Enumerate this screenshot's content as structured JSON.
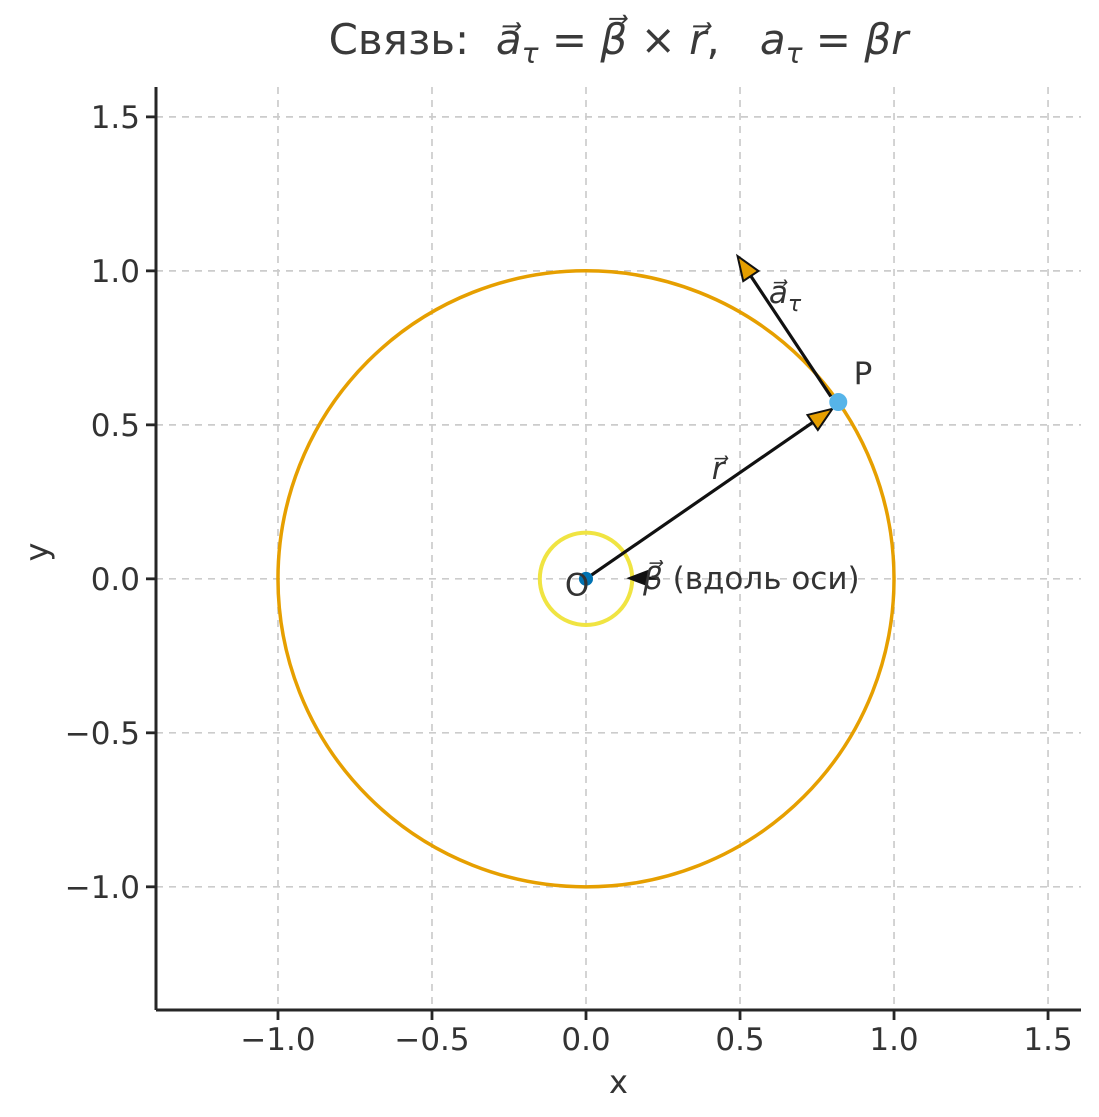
{
  "title": {
    "plain": "Связь:  a⃗τ = β⃗ × r⃗,   aτ = βr",
    "runs": [
      {
        "t": "Связь:  "
      },
      {
        "t": "a⃗",
        "i": true
      },
      {
        "t": "τ",
        "i": true,
        "sub": true
      },
      {
        "t": " = "
      },
      {
        "t": "β⃗",
        "i": true
      },
      {
        "t": " × "
      },
      {
        "t": "r⃗",
        "i": true
      },
      {
        "t": ",   "
      },
      {
        "t": "a",
        "i": true
      },
      {
        "t": "τ",
        "i": true,
        "sub": true
      },
      {
        "t": " = "
      },
      {
        "t": "βr",
        "i": true
      }
    ]
  },
  "style": {
    "text_color": "#333333",
    "spine_color": "#262626",
    "grid_color": "#cccccc",
    "arrow_color": "#111111",
    "orange": "#E69F00",
    "yellow": "#F0E442",
    "blue": "#0072B2",
    "skyblue": "#56B4E9"
  },
  "chart_data": {
    "type": "diagram",
    "title": "Связь:  a⃗τ = β⃗ × r⃗,   aτ = βr",
    "xlabel": "x",
    "ylabel": "y",
    "xlim": [
      -1.396,
      1.607
    ],
    "ylim": [
      -1.4,
      1.597
    ],
    "xticks": [
      -1.0,
      -0.5,
      0.0,
      0.5,
      1.0,
      1.5
    ],
    "xtick_labels": [
      "−1.0",
      "−0.5",
      "0.0",
      "0.5",
      "1.0",
      "1.5"
    ],
    "yticks": [
      -1.0,
      -0.5,
      0.0,
      0.5,
      1.0,
      1.5
    ],
    "ytick_labels": [
      "−1.0",
      "−0.5",
      "0.0",
      "0.5",
      "1.0",
      "1.5"
    ],
    "grid": {
      "on": true,
      "style": "dashed",
      "color": "#cccccc"
    },
    "legend": null,
    "circles": [
      {
        "name": "trajectory-circle",
        "cx": 0,
        "cy": 0,
        "r": 1.0,
        "stroke": "#E69F00",
        "width": 3.5
      },
      {
        "name": "rotation-axis-circle",
        "cx": 0,
        "cy": 0,
        "r": 0.15,
        "stroke": "#F0E442",
        "width": 4
      }
    ],
    "points": [
      {
        "name": "origin-point",
        "x": 0,
        "y": 0,
        "radius": 7,
        "fill": "#0072B2"
      },
      {
        "name": "point-P",
        "x": 0.819,
        "y": 0.574,
        "radius": 9,
        "fill": "#56B4E9"
      }
    ],
    "vectors": [
      {
        "name": "r-vector",
        "from": [
          0,
          0
        ],
        "to": [
          0.8,
          0.552
        ],
        "shaft": "#111111",
        "head": "#E69F00",
        "headlen": 24
      },
      {
        "name": "a-tau-vector",
        "from": [
          0.795,
          0.592
        ],
        "to": [
          0.492,
          1.048
        ],
        "shaft": "#111111",
        "head": "#E69F00",
        "headlen": 24
      },
      {
        "name": "beta-vector",
        "from": [
          0.236,
          0.002
        ],
        "to": [
          0.14,
          0.002
        ],
        "shaft": "#111111",
        "head": "#111111",
        "headlen": 18
      }
    ],
    "labels": [
      {
        "name": "label-O",
        "at": [
          -0.029,
          -0.018
        ],
        "anchor": "middle",
        "runs": [
          {
            "t": "O"
          }
        ]
      },
      {
        "name": "label-P",
        "at": [
          0.899,
          0.669
        ],
        "anchor": "middle",
        "runs": [
          {
            "t": "P"
          }
        ]
      },
      {
        "name": "label-r",
        "at": [
          0.429,
          0.36
        ],
        "anchor": "middle",
        "runs": [
          {
            "t": "r⃗",
            "i": true
          }
        ]
      },
      {
        "name": "label-a-tau",
        "at": [
          0.646,
          0.932
        ],
        "anchor": "middle",
        "runs": [
          {
            "t": "a⃗",
            "i": true
          },
          {
            "t": "τ",
            "i": true,
            "sub": true
          }
        ]
      },
      {
        "name": "label-beta",
        "at": [
          0.185,
          0.003
        ],
        "anchor": "start",
        "runs": [
          {
            "t": "β⃗",
            "i": true
          },
          {
            "t": " (вдоль оси)"
          }
        ]
      }
    ]
  }
}
